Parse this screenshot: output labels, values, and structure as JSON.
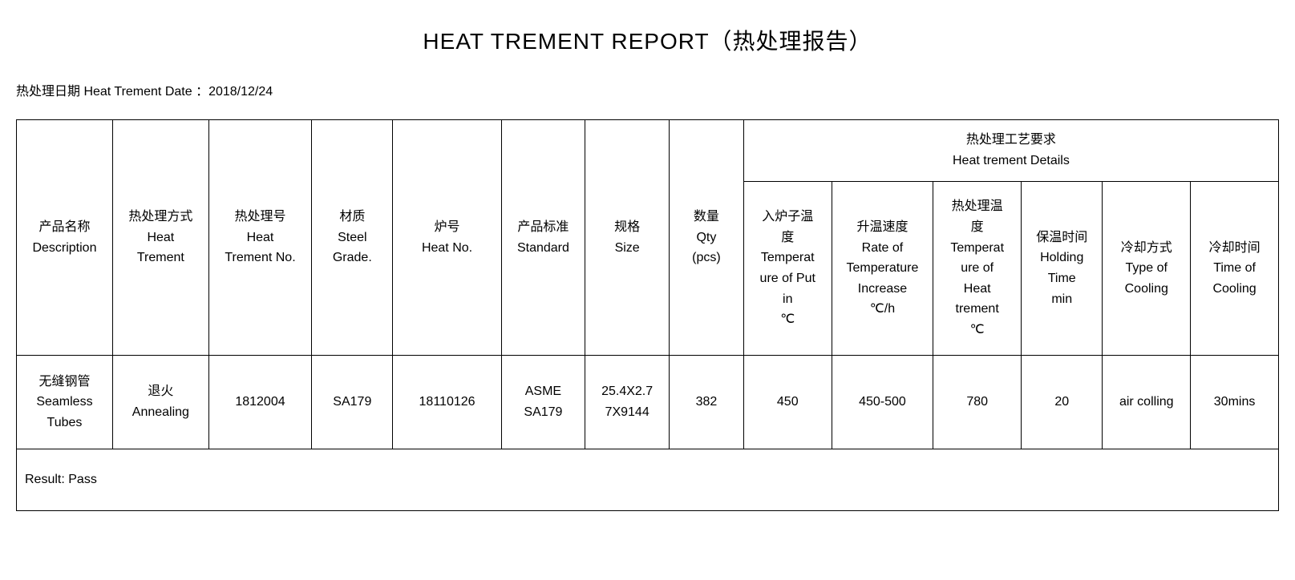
{
  "title": "HEAT TREMENT REPORT（热处理报告）",
  "date_label": "热处理日期 Heat Trement Date ：",
  "date_value": "2018/12/24",
  "columns": {
    "description": "产品名称\nDescription",
    "heat_trement": "热处理方式\nHeat\nTrement",
    "heat_trement_no": "热处理号\nHeat\nTrement No.",
    "steel_grade": "材质\nSteel\nGrade.",
    "heat_no": "炉号\nHeat No.",
    "standard": "产品标准\nStandard",
    "size": "规格\nSize",
    "qty": "数量\nQty\n(pcs)",
    "details_group": "热处理工艺要求\nHeat trement Details",
    "temp_put_in": "入炉子温\n度\nTemperat\nure of Put\nin\n℃",
    "rate_increase": "升温速度\nRate of\nTemperature\nIncrease\n℃/h",
    "temp_heat": "热处理温\n度\nTemperat\nure of\nHeat\ntrement\n℃",
    "holding_time": "保温时间\nHolding\nTime\nmin",
    "type_cooling": "冷却方式\nType of\nCooling",
    "time_cooling": "冷却时间\nTime of\nCooling"
  },
  "row": {
    "description": "无缝钢管\nSeamless\nTubes",
    "heat_trement": "退火\nAnnealing",
    "heat_trement_no": "1812004",
    "steel_grade": "SA179",
    "heat_no": "18110126",
    "standard": "ASME\nSA179",
    "size": "25.4X2.7\n7X9144",
    "qty": "382",
    "temp_put_in": "450",
    "rate_increase": "450-500",
    "temp_heat": "780",
    "holding_time": "20",
    "type_cooling": "air colling",
    "time_cooling": "30mins"
  },
  "result_label": "Result: Pass",
  "col_widths": {
    "description": "7.1%",
    "heat_trement": "7.1%",
    "heat_trement_no": "7.6%",
    "steel_grade": "6.0%",
    "heat_no": "8.0%",
    "standard": "6.2%",
    "size": "6.2%",
    "qty": "5.5%",
    "temp_put_in": "6.5%",
    "rate_increase": "7.5%",
    "temp_heat": "6.5%",
    "holding_time": "6.0%",
    "type_cooling": "6.5%",
    "time_cooling": "6.5%"
  },
  "styling": {
    "background_color": "#ffffff",
    "text_color": "#000000",
    "border_color": "#000000",
    "title_fontsize": 28,
    "body_fontsize": 16,
    "font_family": "Arial, Microsoft YaHei"
  }
}
